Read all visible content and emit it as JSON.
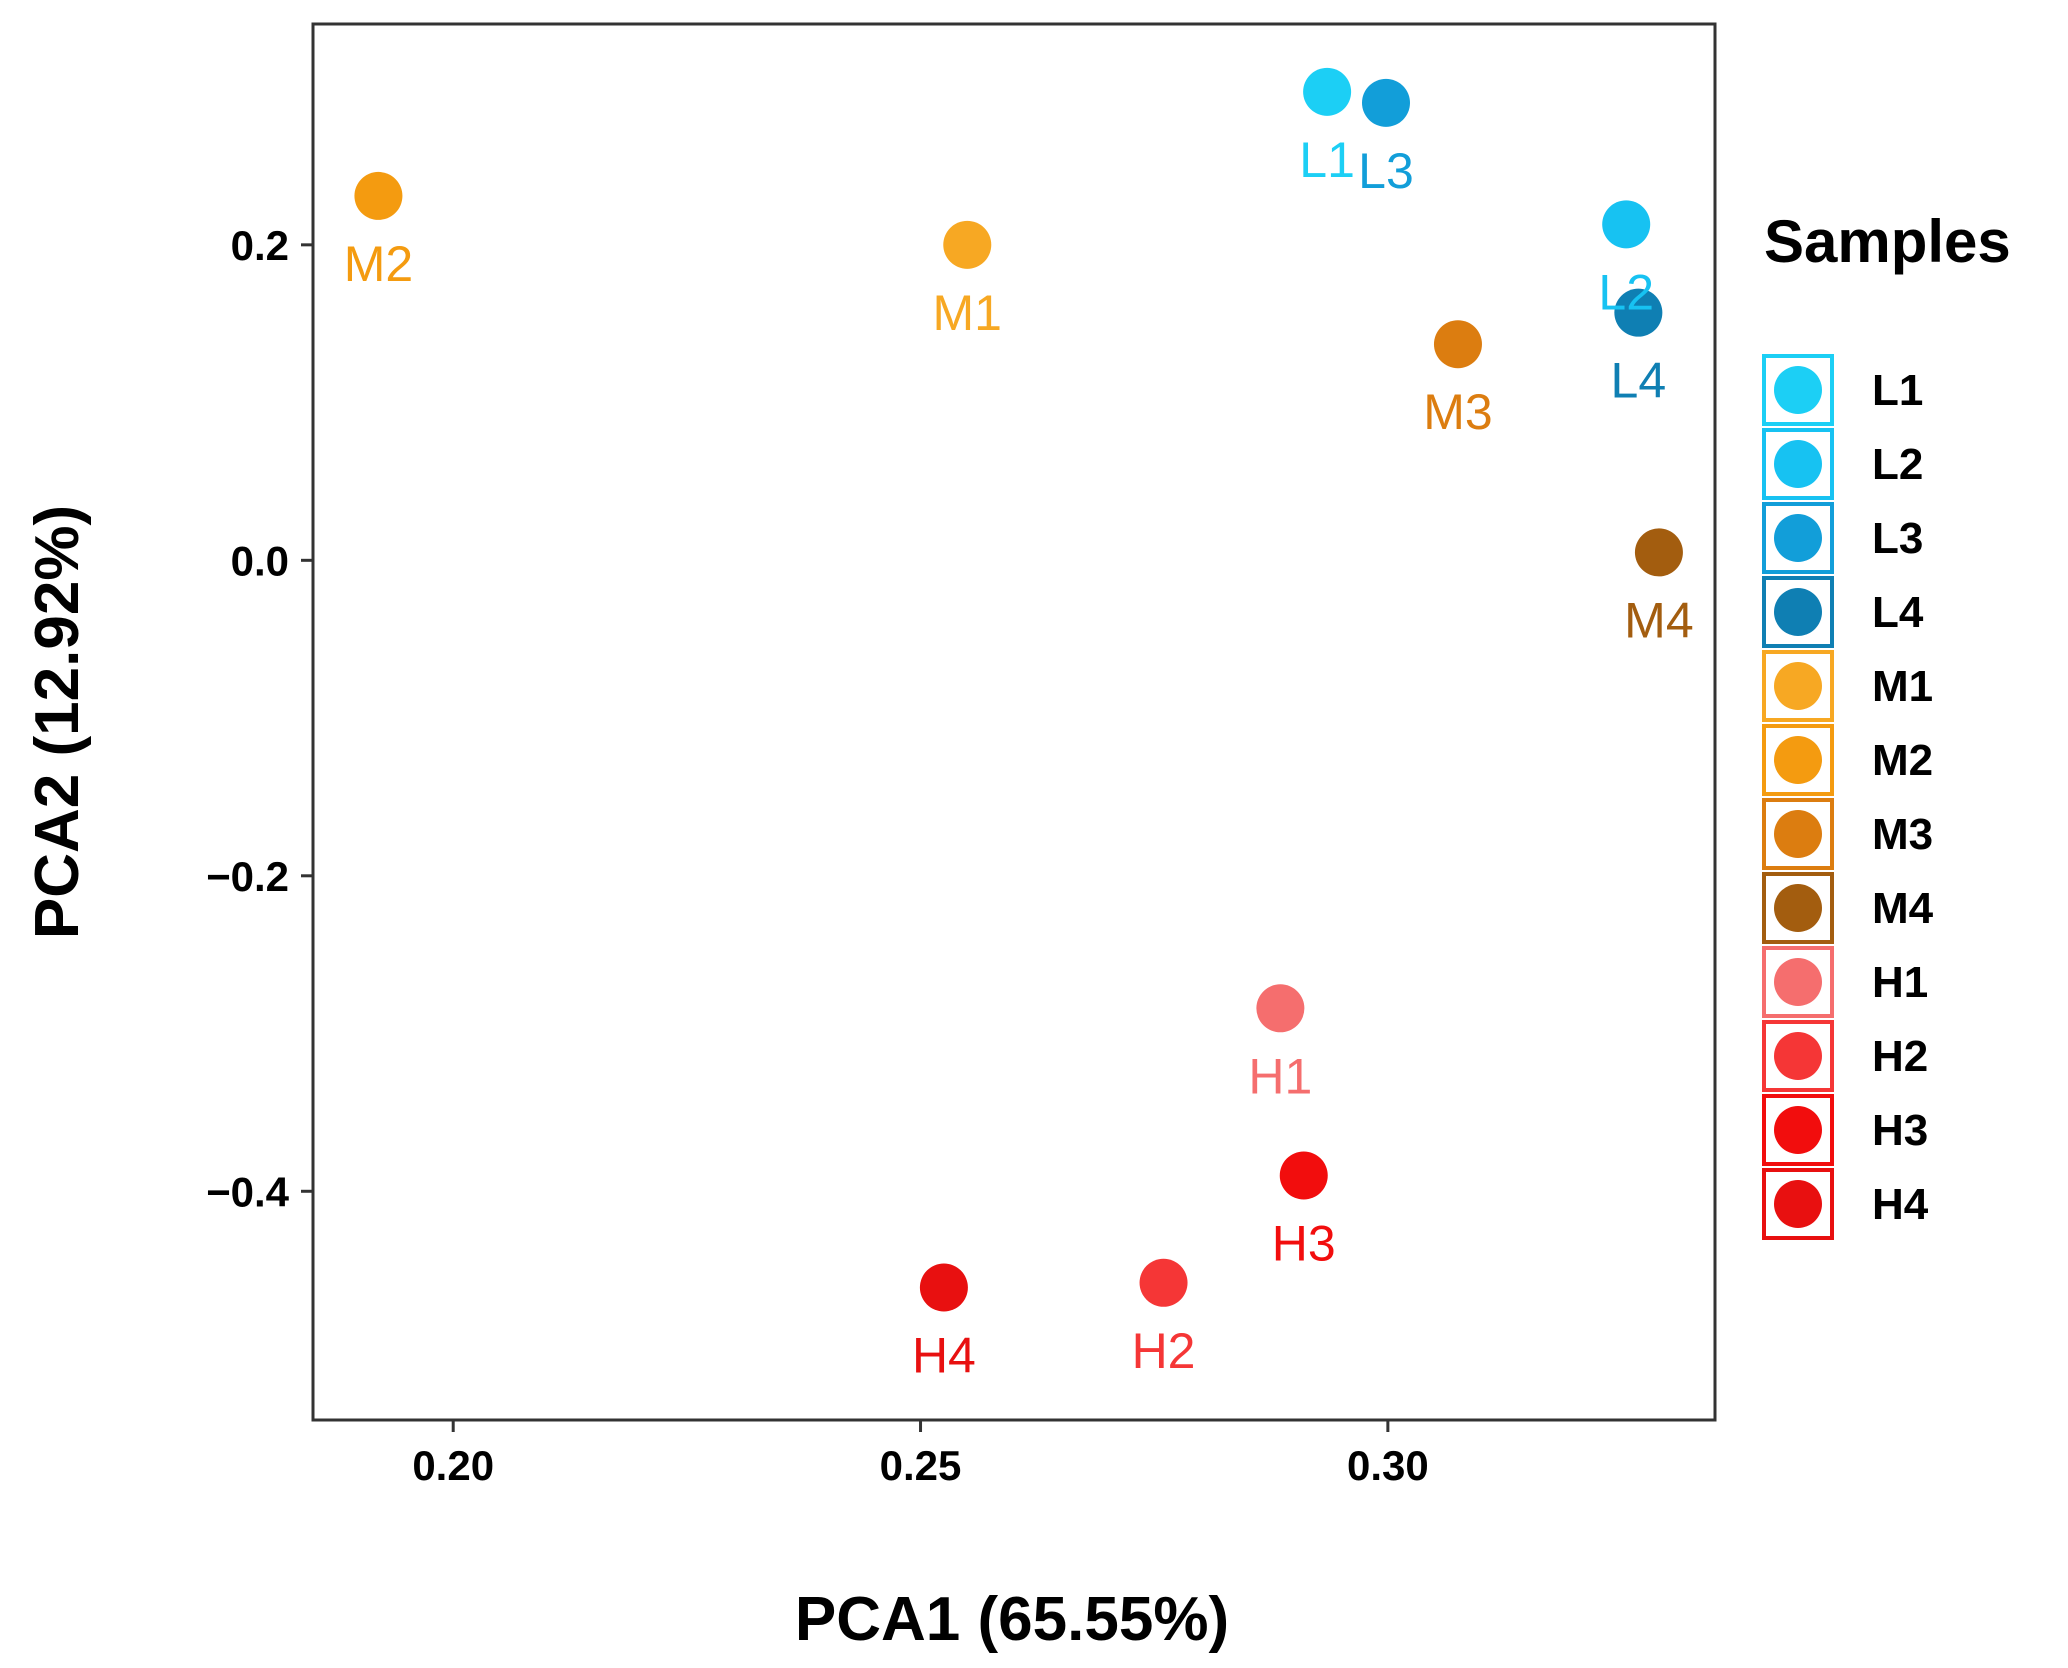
{
  "chart_data": {
    "type": "scatter",
    "title": "",
    "xlabel": "PCA1 (65.55%)",
    "ylabel": "PCA2 (12.92%)",
    "xlim": [
      0.185,
      0.335
    ],
    "ylim": [
      -0.545,
      0.34
    ],
    "xticks": [
      {
        "value": 0.2,
        "label": "0.20"
      },
      {
        "value": 0.25,
        "label": "0.25"
      },
      {
        "value": 0.3,
        "label": "0.30"
      }
    ],
    "yticks": [
      {
        "value": 0.2,
        "label": "0.2"
      },
      {
        "value": 0.0,
        "label": "0.0"
      },
      {
        "value": -0.2,
        "label": "−0.2"
      },
      {
        "value": -0.4,
        "label": "−0.4"
      }
    ],
    "grid": false,
    "legend": {
      "title": "Samples",
      "placement": "right"
    },
    "points": [
      {
        "name": "L1",
        "x": 0.2935,
        "y": 0.297,
        "color": "#1ccff5",
        "label_offset": "below-left"
      },
      {
        "name": "L2",
        "x": 0.3255,
        "y": 0.213,
        "color": "#17c2f2",
        "label_offset": "below"
      },
      {
        "name": "L3",
        "x": 0.2998,
        "y": 0.29,
        "color": "#129ed9",
        "label_offset": "below"
      },
      {
        "name": "L4",
        "x": 0.3268,
        "y": 0.157,
        "color": "#0f7fb3",
        "label_offset": "below"
      },
      {
        "name": "M1",
        "x": 0.255,
        "y": 0.2,
        "color": "#f7a823",
        "label_offset": "below"
      },
      {
        "name": "M2",
        "x": 0.192,
        "y": 0.231,
        "color": "#f49b10",
        "label_offset": "below"
      },
      {
        "name": "M3",
        "x": 0.3075,
        "y": 0.137,
        "color": "#dc7d10",
        "label_offset": "below"
      },
      {
        "name": "M4",
        "x": 0.329,
        "y": 0.005,
        "color": "#a35d0f",
        "label_offset": "below"
      },
      {
        "name": "H1",
        "x": 0.2885,
        "y": -0.284,
        "color": "#f56e6e",
        "label_offset": "below"
      },
      {
        "name": "H2",
        "x": 0.276,
        "y": -0.458,
        "color": "#f53636",
        "label_offset": "below"
      },
      {
        "name": "H3",
        "x": 0.291,
        "y": -0.39,
        "color": "#f20d0d",
        "label_offset": "below"
      },
      {
        "name": "H4",
        "x": 0.2525,
        "y": -0.461,
        "color": "#e81010",
        "label_offset": "below"
      }
    ]
  }
}
